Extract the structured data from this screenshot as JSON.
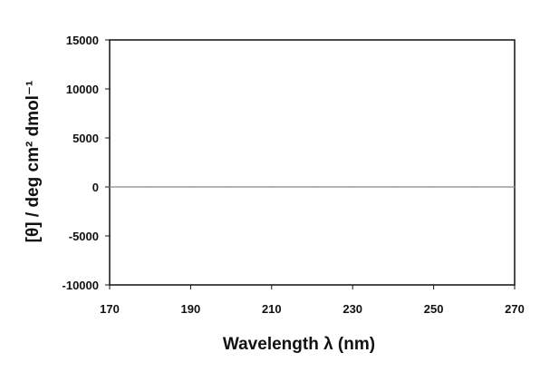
{
  "chart_data": {
    "type": "line",
    "title": "",
    "xlabel": "Wavelength  λ (nm)",
    "ylabel": "[θ] / deg cm² dmol⁻¹",
    "xlim": [
      170,
      270
    ],
    "ylim": [
      -10000,
      15000
    ],
    "x_ticks": [
      170,
      190,
      210,
      230,
      250,
      270
    ],
    "y_ticks": [
      -10000,
      -5000,
      0,
      5000,
      10000,
      15000
    ],
    "x_tick_labels": [
      "170",
      "190",
      "210",
      "230",
      "250",
      "270"
    ],
    "y_tick_labels": [
      "-10000",
      "-5000",
      "0",
      "5000",
      "10000",
      "15000"
    ],
    "grid": false,
    "legend": "none",
    "colors": {
      "axis": "#111111",
      "zero_line": "#777777",
      "series": "#888888"
    },
    "series": [
      {
        "x": [
          170,
          180,
          190,
          200,
          210,
          220,
          230,
          240,
          250,
          260,
          270
        ],
        "values": [
          0,
          0,
          0,
          0,
          0,
          0,
          0,
          0,
          0,
          0,
          0
        ]
      }
    ]
  }
}
